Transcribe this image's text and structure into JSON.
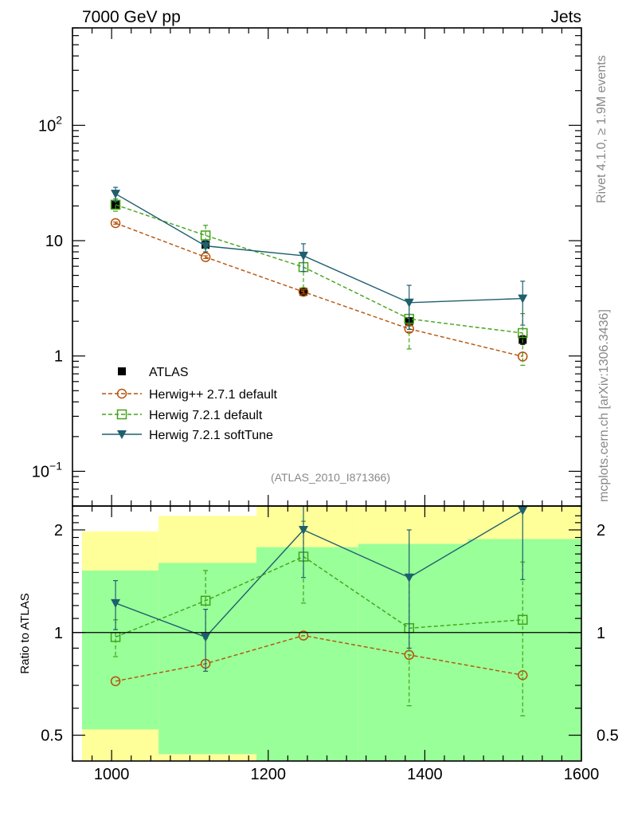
{
  "chart_data": {
    "type": "line",
    "header_left": "7000 GeV pp",
    "header_right": "Jets",
    "side_label_rivet": "Rivet 4.1.0, ≥ 1.9M events",
    "side_label_mcplots": "mcplots.cern.ch [arXiv:1306.3436]",
    "analysis_id": "(ATLAS_2010_I871366)",
    "x": [
      1005,
      1120,
      1245,
      1380,
      1525
    ],
    "xlim": [
      950,
      1600
    ],
    "x_ticks": [
      1000,
      1200,
      1400,
      1600
    ],
    "x_tick_labels": [
      "1000",
      "1200",
      "1400",
      "1600"
    ],
    "main_panel": {
      "yscale": "log",
      "ylim": [
        0.05,
        700
      ],
      "y_ticks": [
        0.1,
        1,
        10,
        100
      ],
      "y_tick_labels": [
        {
          "base": "10",
          "exp": "−1"
        },
        {
          "base": "1",
          "exp": ""
        },
        {
          "base": "10",
          "exp": ""
        },
        {
          "base": "10",
          "exp": "2"
        }
      ]
    },
    "ratio_panel": {
      "ylabel": "Ratio to ATLAS",
      "yscale": "log",
      "ylim": [
        0.42,
        2.35
      ],
      "y_ticks": [
        0.5,
        1,
        2
      ],
      "y_tick_labels": [
        "0.5",
        "1",
        "2"
      ],
      "reference_line": 1,
      "bands": [
        {
          "x_lo": 950,
          "x_hi": 1060,
          "green_lo": 0.52,
          "green_hi": 1.52,
          "yellow_lo": 0.35,
          "yellow_hi": 1.98
        },
        {
          "x_lo": 1060,
          "x_hi": 1185,
          "green_lo": 0.44,
          "green_hi": 1.6,
          "yellow_lo": 0.35,
          "yellow_hi": 2.2
        },
        {
          "x_lo": 1185,
          "x_hi": 1315,
          "green_lo": 0.35,
          "green_hi": 1.78,
          "yellow_lo": 0.35,
          "yellow_hi": 2.4
        },
        {
          "x_lo": 1315,
          "x_hi": 1455,
          "green_lo": 0.35,
          "green_hi": 1.82,
          "yellow_lo": 0.35,
          "yellow_hi": 2.6
        },
        {
          "x_lo": 1455,
          "x_hi": 1600,
          "green_lo": 0.35,
          "green_hi": 1.88,
          "yellow_lo": 0.35,
          "yellow_hi": 2.6
        }
      ]
    },
    "series": [
      {
        "name": "ATLAS",
        "color": "#000000",
        "marker": "square-filled",
        "line": "none",
        "values": [
          20.5,
          9.2,
          3.6,
          2.0,
          1.38
        ],
        "err": [
          0.8,
          0.4,
          0.2,
          0.15,
          0.12
        ],
        "ratio": [
          1,
          1,
          1,
          1,
          1
        ],
        "ratio_err": [
          0,
          0,
          0,
          0,
          0
        ]
      },
      {
        "name": "Herwig++ 2.7.1 default",
        "color": "#b5520b",
        "marker": "circle-open",
        "line": "dashed",
        "values": [
          14.2,
          7.2,
          3.6,
          1.72,
          0.99
        ],
        "err": [
          0.3,
          0.2,
          0.15,
          0.1,
          0.08
        ],
        "ratio": [
          0.72,
          0.81,
          0.98,
          0.86,
          0.75
        ],
        "ratio_err": [
          0,
          0,
          0,
          0,
          0
        ]
      },
      {
        "name": "Herwig 7.2.1 default",
        "color": "#41a317",
        "marker": "square-open",
        "line": "dashed",
        "values": [
          20.5,
          11.1,
          5.9,
          2.1,
          1.58
        ],
        "err": [
          2.5,
          2.5,
          2.0,
          0.95,
          0.75
        ],
        "ratio": [
          0.97,
          1.24,
          1.67,
          1.03,
          1.09
        ],
        "ratio_err": [
          0.12,
          0.28,
          0.45,
          0.42,
          0.52
        ]
      },
      {
        "name": "Herwig 7.2.1 softTune",
        "color": "#1f5f6f",
        "marker": "triangle-down-filled",
        "line": "solid",
        "values": [
          25.5,
          9.0,
          7.4,
          2.9,
          3.15
        ],
        "err": [
          3.5,
          1.0,
          2.0,
          1.2,
          1.3
        ],
        "ratio": [
          1.22,
          0.97,
          2.0,
          1.45,
          2.28
        ],
        "ratio_err": [
          0.2,
          0.2,
          0.55,
          0.55,
          0.85
        ]
      }
    ]
  }
}
